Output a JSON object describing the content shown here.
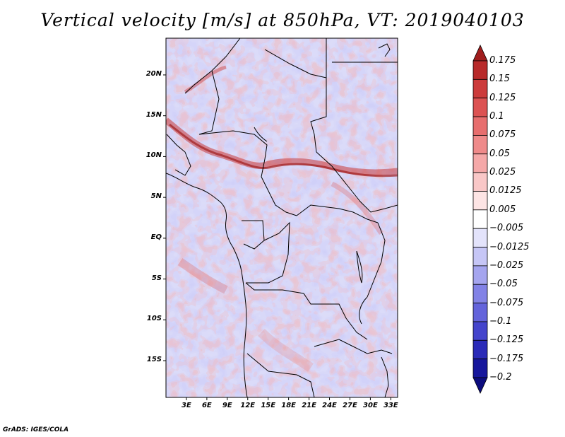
{
  "title": "Vertical velocity [m/s] at 850hPa, VT: 2019040103",
  "credit": "GrADS: IGES/COLA",
  "map": {
    "lat_labels": [
      "20N",
      "15N",
      "10N",
      "5N",
      "EQ",
      "5S",
      "10S",
      "15S"
    ],
    "lat_values": [
      20,
      15,
      10,
      5,
      0,
      -5,
      -10,
      -15
    ],
    "lon_labels": [
      "3E",
      "6E",
      "9E",
      "12E",
      "15E",
      "18E",
      "21E",
      "24E",
      "27E",
      "30E",
      "33E"
    ],
    "lon_values": [
      3,
      6,
      9,
      12,
      15,
      18,
      21,
      24,
      27,
      30,
      33
    ],
    "lon_range": [
      0,
      34
    ],
    "lat_range": [
      -19.5,
      24.5
    ]
  },
  "colorbar": {
    "labels": [
      "0.175",
      "0.15",
      "0.125",
      "0.1",
      "0.075",
      "0.05",
      "0.025",
      "0.0125",
      "0.005",
      "−0.005",
      "−0.0125",
      "−0.025",
      "−0.05",
      "−0.075",
      "−0.1",
      "−0.125",
      "−0.175",
      "−0.2"
    ],
    "colors": [
      "#a01d1d",
      "#b82a2a",
      "#cc3b3b",
      "#dc5252",
      "#e76e6e",
      "#ef8a8a",
      "#f5a8a8",
      "#f9c7c7",
      "#fde4e4",
      "#ffffff",
      "#e3e3fb",
      "#c6c6f6",
      "#a5a5ef",
      "#8282e6",
      "#6363db",
      "#4444cc",
      "#2a2ab8",
      "#16169c",
      "#0c0c7e"
    ]
  }
}
